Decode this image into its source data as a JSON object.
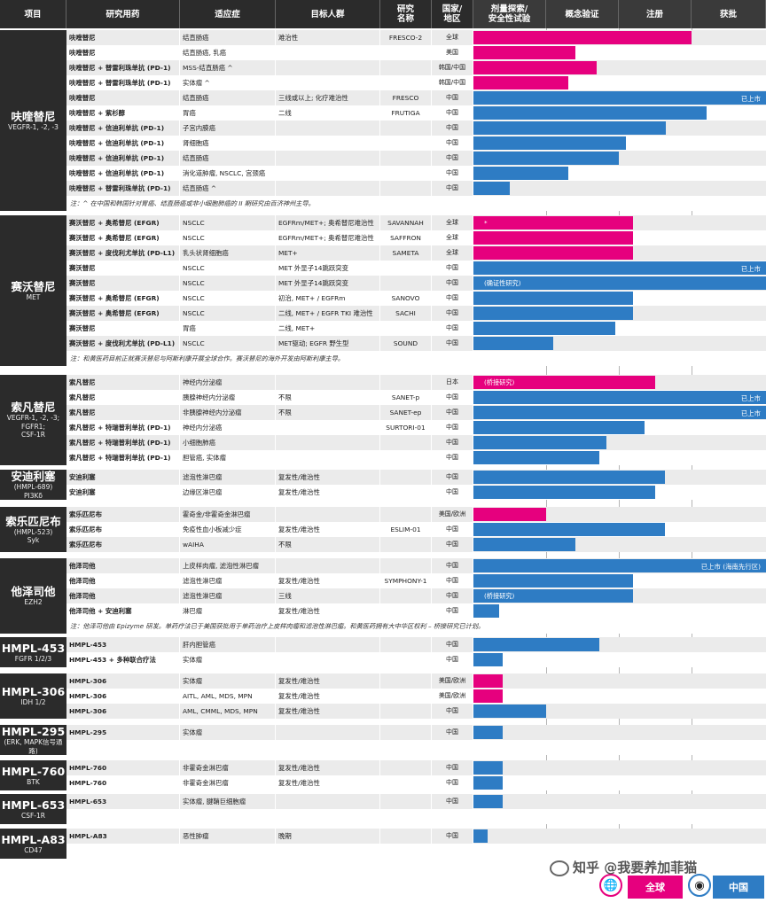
{
  "header": {
    "project": "项目",
    "drug": "研究用药",
    "indication": "适应症",
    "population": "目标人群",
    "trial": "研究\n名称",
    "region": "国家/\n地区",
    "phases": [
      "剂量探索/\n安全性试验",
      "概念验证",
      "注册",
      "获批"
    ]
  },
  "colors": {
    "global": "#e6007e",
    "china": "#2e7cc4",
    "header_bg": "#2b2b2b"
  },
  "phase_scale": {
    "note": "bar progress: 1=剂量探索 end, 2=概念验证 end, 3=注册 end, 4=获批 end"
  },
  "sections": [
    {
      "name": "呋喹替尼",
      "target": "VEGFR-1, -2, -3",
      "rows": [
        {
          "drug": "呋喹替尼",
          "ind": "结直肠癌",
          "pop": "难治性",
          "trial": "FRESCO-2",
          "reg": "全球",
          "color": "global",
          "progress": 3.0
        },
        {
          "drug": "呋喹替尼",
          "ind": "结直肠癌, 乳癌",
          "pop": "",
          "trial": "",
          "reg": "美国",
          "color": "global",
          "progress": 1.4
        },
        {
          "drug": "呋喹替尼 + 替雷利珠单抗 (PD-1)",
          "ind": "MSS-结直肠癌 ^",
          "pop": "",
          "trial": "",
          "reg": "韩国/中国",
          "color": "global",
          "progress": 1.7
        },
        {
          "drug": "呋喹替尼 + 替雷利珠单抗 (PD-1)",
          "ind": "实体瘤 ^",
          "pop": "",
          "trial": "",
          "reg": "韩国/中国",
          "color": "global",
          "progress": 1.3
        },
        {
          "drug": "呋喹替尼",
          "ind": "结直肠癌",
          "pop": "三线或以上; 化疗难治性",
          "trial": "FRESCO",
          "reg": "中国",
          "color": "china",
          "progress": 4.0,
          "marker": "已上市"
        },
        {
          "drug": "呋喹替尼 + 紫杉醇",
          "ind": "胃癌",
          "pop": "二线",
          "trial": "FRUTIGA",
          "reg": "中国",
          "color": "china",
          "progress": 3.2
        },
        {
          "drug": "呋喹替尼 + 信迪利单抗 (PD-1)",
          "ind": "子宫内膜癌",
          "pop": "",
          "trial": "",
          "reg": "中国",
          "color": "china",
          "progress": 2.65
        },
        {
          "drug": "呋喹替尼 + 信迪利单抗 (PD-1)",
          "ind": "肾细胞癌",
          "pop": "",
          "trial": "",
          "reg": "中国",
          "color": "china",
          "progress": 2.1
        },
        {
          "drug": "呋喹替尼 + 信迪利单抗 (PD-1)",
          "ind": "结直肠癌",
          "pop": "",
          "trial": "",
          "reg": "中国",
          "color": "china",
          "progress": 2.0
        },
        {
          "drug": "呋喹替尼 + 信迪利单抗 (PD-1)",
          "ind": "消化道肿瘤, NSCLC, 宫颈癌",
          "pop": "",
          "trial": "",
          "reg": "中国",
          "color": "china",
          "progress": 1.3
        },
        {
          "drug": "呋喹替尼 + 替雷利珠单抗 (PD-1)",
          "ind": "结直肠癌 ^",
          "pop": "",
          "trial": "",
          "reg": "中国",
          "color": "china",
          "progress": 0.5
        }
      ],
      "note": "注：^ 在中国和韩国针对胃癌、结直肠癌或非小细胞肺癌的 II 期研究由百济神州主导。"
    },
    {
      "name": "赛沃替尼",
      "target": "MET",
      "rows": [
        {
          "drug": "赛沃替尼 + 奥希替尼 (EFGR)",
          "ind": "NSCLC",
          "pop": "EGFRm/MET+; 奥希替尼难治性",
          "trial": "SAVANNAH",
          "reg": "全球",
          "color": "global",
          "progress": 2.2,
          "inbar": "*"
        },
        {
          "drug": "赛沃替尼 + 奥希替尼 (EFGR)",
          "ind": "NSCLC",
          "pop": "EGFRm/MET+; 奥希替尼难治性",
          "trial": "SAFFRON",
          "reg": "全球",
          "color": "global",
          "progress": 2.2
        },
        {
          "drug": "赛沃替尼 + 度伐利尤单抗 (PD-L1)",
          "ind": "乳头状肾细胞癌",
          "pop": "MET+",
          "trial": "SAMETA",
          "reg": "全球",
          "color": "global",
          "progress": 2.2
        },
        {
          "drug": "赛沃替尼",
          "ind": "NSCLC",
          "pop": "MET 外显子14跳跃突变",
          "trial": "",
          "reg": "中国",
          "color": "china",
          "progress": 4.0,
          "marker": "已上市"
        },
        {
          "drug": "赛沃替尼",
          "ind": "NSCLC",
          "pop": "MET 外显子14跳跃突变",
          "trial": "",
          "reg": "中国",
          "color": "china",
          "progress": 4.0,
          "inbar": "(确证性研究)"
        },
        {
          "drug": "赛沃替尼 + 奥希替尼 (EFGR)",
          "ind": "NSCLC",
          "pop": "初治, MET+ / EGFRm",
          "trial": "SANOVO",
          "reg": "中国",
          "color": "china",
          "progress": 2.2
        },
        {
          "drug": "赛沃替尼 + 奥希替尼 (EFGR)",
          "ind": "NSCLC",
          "pop": "二线, MET+ / EGFR TKI 难治性",
          "trial": "SACHI",
          "reg": "中国",
          "color": "china",
          "progress": 2.2
        },
        {
          "drug": "赛沃替尼",
          "ind": "胃癌",
          "pop": "二线, MET+",
          "trial": "",
          "reg": "中国",
          "color": "china",
          "progress": 1.95
        },
        {
          "drug": "赛沃替尼 + 度伐利尤单抗 (PD-L1)",
          "ind": "NSCLC",
          "pop": "MET驱动; EGFR 野生型",
          "trial": "SOUND",
          "reg": "中国",
          "color": "china",
          "progress": 1.1
        }
      ],
      "note": "注：和黄医药目前正就赛沃替尼与阿斯利康开展全球合作。赛沃替尼的海外开发由阿斯利康主导。"
    },
    {
      "name": "索凡替尼",
      "target": "VEGFR-1, -2, -3;\nFGFR1;\nCSF-1R",
      "rows": [
        {
          "drug": "索凡替尼",
          "ind": "神经内分泌瘤",
          "pop": "",
          "trial": "",
          "reg": "日本",
          "color": "global",
          "progress": 2.5,
          "inbar": "(桥接研究)"
        },
        {
          "drug": "索凡替尼",
          "ind": "胰腺神经内分泌瘤",
          "pop": "不限",
          "trial": "SANET-p",
          "reg": "中国",
          "color": "china",
          "progress": 4.0,
          "marker": "已上市"
        },
        {
          "drug": "索凡替尼",
          "ind": "非胰腺神经内分泌瘤",
          "pop": "不限",
          "trial": "SANET-ep",
          "reg": "中国",
          "color": "china",
          "progress": 4.0,
          "marker": "已上市"
        },
        {
          "drug": "索凡替尼 + 特瑞普利单抗 (PD-1)",
          "ind": "神经内分泌癌",
          "pop": "",
          "trial": "SURTORI-01",
          "reg": "中国",
          "color": "china",
          "progress": 2.35
        },
        {
          "drug": "索凡替尼 + 特瑞普利单抗 (PD-1)",
          "ind": "小细胞肺癌",
          "pop": "",
          "trial": "",
          "reg": "中国",
          "color": "china",
          "progress": 1.83
        },
        {
          "drug": "索凡替尼 + 特瑞普利单抗 (PD-1)",
          "ind": "胆管癌, 实体瘤",
          "pop": "",
          "trial": "",
          "reg": "中国",
          "color": "china",
          "progress": 1.73
        }
      ]
    },
    {
      "name": "安迪利塞",
      "target": "(HMPL-689)\nPI3Kδ",
      "rows": [
        {
          "drug": "安迪利塞",
          "ind": "滤泡性淋巴瘤",
          "pop": "复发性/难治性",
          "trial": "",
          "reg": "中国",
          "color": "china",
          "progress": 2.63
        },
        {
          "drug": "安迪利塞",
          "ind": "边缘区淋巴瘤",
          "pop": "复发性/难治性",
          "trial": "",
          "reg": "中国",
          "color": "china",
          "progress": 2.5
        }
      ]
    },
    {
      "name": "索乐匹尼布",
      "target": "(HMPL-523)\nSyk",
      "rows": [
        {
          "drug": "索乐匹尼布",
          "ind": "霍奇金/非霍奇金淋巴瘤",
          "pop": "",
          "trial": "",
          "reg": "美国/欧洲",
          "color": "global",
          "progress": 1.0
        },
        {
          "drug": "索乐匹尼布",
          "ind": "免疫性血小板减少症",
          "pop": "复发性/难治性",
          "trial": "ESLIM-01",
          "reg": "中国",
          "color": "china",
          "progress": 2.63
        },
        {
          "drug": "索乐匹尼布",
          "ind": "wAIHA",
          "pop": "不限",
          "trial": "",
          "reg": "中国",
          "color": "china",
          "progress": 1.4
        }
      ]
    },
    {
      "name": "他泽司他",
      "target": "EZH2",
      "rows": [
        {
          "drug": "他泽司他",
          "ind": "上皮样肉瘤, 滤泡性淋巴瘤",
          "pop": "",
          "trial": "",
          "reg": "中国",
          "color": "china",
          "progress": 4.0,
          "marker": "已上市 (海南先行区)"
        },
        {
          "drug": "他泽司他",
          "ind": "滤泡性淋巴瘤",
          "pop": "复发性/难治性",
          "trial": "SYMPHONY-1",
          "reg": "中国",
          "color": "china",
          "progress": 2.2
        },
        {
          "drug": "他泽司他",
          "ind": "滤泡性淋巴瘤",
          "pop": "三线",
          "trial": "",
          "reg": "中国",
          "color": "china",
          "progress": 2.2,
          "inbar": "(桥接研究)"
        },
        {
          "drug": "他泽司他 + 安迪利塞",
          "ind": "淋巴瘤",
          "pop": "复发性/难治性",
          "trial": "",
          "reg": "中国",
          "color": "china",
          "progress": 0.35
        }
      ],
      "note": "注：他泽司他由 Epizyme 研发。单药疗法已于美国获批用于单药治疗上皮样肉瘤和滤泡性淋巴瘤。和黄医药拥有大中华区权利 – 桥接研究已计划。"
    },
    {
      "name": "HMPL-453",
      "target": "FGFR 1/2/3",
      "rows": [
        {
          "drug": "HMPL-453",
          "ind": "肝内胆管癌",
          "pop": "",
          "trial": "",
          "reg": "中国",
          "color": "china",
          "progress": 1.73
        },
        {
          "drug": "HMPL-453 + 多种联合疗法",
          "ind": "实体瘤",
          "pop": "",
          "trial": "",
          "reg": "中国",
          "color": "china",
          "progress": 0.4
        }
      ]
    },
    {
      "name": "HMPL-306",
      "target": "IDH 1/2",
      "rows": [
        {
          "drug": "HMPL-306",
          "ind": "实体瘤",
          "pop": "复发性/难治性",
          "trial": "",
          "reg": "美国/欧洲",
          "color": "global",
          "progress": 0.4
        },
        {
          "drug": "HMPL-306",
          "ind": "AITL, AML, MDS, MPN",
          "pop": "复发性/难治性",
          "trial": "",
          "reg": "美国/欧洲",
          "color": "global",
          "progress": 0.4
        },
        {
          "drug": "HMPL-306",
          "ind": "AML, CMML, MDS, MPN",
          "pop": "复发性/难治性",
          "trial": "",
          "reg": "中国",
          "color": "china",
          "progress": 1.0
        }
      ]
    },
    {
      "name": "HMPL-295",
      "target": "(ERK, MAPK信号通路)",
      "rows": [
        {
          "drug": "HMPL-295",
          "ind": "实体瘤",
          "pop": "",
          "trial": "",
          "reg": "中国",
          "color": "china",
          "progress": 0.4
        },
        {
          "drug": "",
          "ind": "",
          "pop": "",
          "trial": "",
          "reg": "",
          "color": "",
          "progress": 0
        }
      ]
    },
    {
      "name": "HMPL-760",
      "target": "BTK",
      "rows": [
        {
          "drug": "HMPL-760",
          "ind": "非霍奇金淋巴瘤",
          "pop": "复发性/难治性",
          "trial": "",
          "reg": "中国",
          "color": "china",
          "progress": 0.4
        },
        {
          "drug": "HMPL-760",
          "ind": "非霍奇金淋巴瘤",
          "pop": "复发性/难治性",
          "trial": "",
          "reg": "中国",
          "color": "china",
          "progress": 0.4
        }
      ]
    },
    {
      "name": "HMPL-653",
      "target": "CSF-1R",
      "rows": [
        {
          "drug": "HMPL-653",
          "ind": "实体瘤, 腱鞘巨细胞瘤",
          "pop": "",
          "trial": "",
          "reg": "中国",
          "color": "china",
          "progress": 0.4
        },
        {
          "drug": "",
          "ind": "",
          "pop": "",
          "trial": "",
          "reg": "",
          "color": "",
          "progress": 0
        }
      ]
    },
    {
      "name": "HMPL-A83",
      "target": "CD47",
      "rows": [
        {
          "drug": "HMPL-A83",
          "ind": "恶性肿瘤",
          "pop": "晚期",
          "trial": "",
          "reg": "中国",
          "color": "china",
          "progress": 0.2
        },
        {
          "drug": "",
          "ind": "",
          "pop": "",
          "trial": "",
          "reg": "",
          "color": "",
          "progress": 0
        }
      ]
    }
  ],
  "legend": {
    "global": "全球",
    "china": "中国"
  },
  "watermark": "知乎 @我要养加菲猫"
}
